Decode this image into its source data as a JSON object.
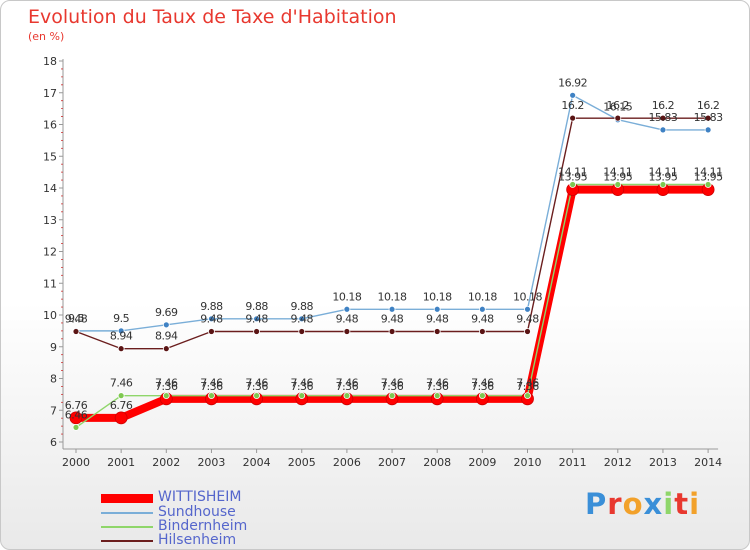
{
  "chart_data": {
    "type": "line",
    "title": "Evolution du Taux de Taxe d'Habitation",
    "subtitle": "(en %)",
    "categories": [
      "2000",
      "2001",
      "2002",
      "2003",
      "2004",
      "2005",
      "2006",
      "2007",
      "2008",
      "2009",
      "2010",
      "2011",
      "2012",
      "2013",
      "2014"
    ],
    "ylim": [
      6,
      18
    ],
    "yticks": [
      "6",
      "7",
      "8",
      "9",
      "10",
      "11",
      "12",
      "13",
      "14",
      "15",
      "16",
      "17",
      "18"
    ],
    "grid": false,
    "legend_position": "bottom-left",
    "series": [
      {
        "name": "WITTISHEIM",
        "color": "#ff0000",
        "values": [
          6.76,
          6.76,
          7.36,
          7.36,
          7.36,
          7.36,
          7.36,
          7.36,
          7.36,
          7.36,
          7.36,
          13.95,
          13.95,
          13.95,
          13.95
        ],
        "labels": [
          "6.76",
          "6.76",
          "7.36",
          "7.36",
          "7.36",
          "7.36",
          "7.36",
          "7.36",
          "7.36",
          "7.36",
          "7.36",
          "13.95",
          "13.95",
          "13.95",
          "13.95"
        ]
      },
      {
        "name": "Sundhouse",
        "color": "#7aaed8",
        "values": [
          9.5,
          9.5,
          9.69,
          9.88,
          9.88,
          9.88,
          10.18,
          10.18,
          10.18,
          10.18,
          10.18,
          16.92,
          16.15,
          15.83,
          15.83
        ],
        "labels": [
          "9.5",
          "9.5",
          "9.69",
          "9.88",
          "9.88",
          "9.88",
          "10.18",
          "10.18",
          "10.18",
          "10.18",
          "10.18",
          "16.92",
          "16.15",
          "15.83",
          "15.83"
        ]
      },
      {
        "name": "Bindernheim",
        "color": "#8fd66a",
        "values": [
          6.46,
          7.46,
          7.46,
          7.46,
          7.46,
          7.46,
          7.46,
          7.46,
          7.46,
          7.46,
          7.46,
          14.11,
          14.11,
          14.11,
          14.11
        ],
        "labels": [
          "6.46",
          "7.46",
          "7.46",
          "7.46",
          "7.46",
          "7.46",
          "7.46",
          "7.46",
          "7.46",
          "7.46",
          "7.46",
          "14.11",
          "14.11",
          "14.11",
          "14.11"
        ]
      },
      {
        "name": "Hilsenheim",
        "color": "#6b1e1e",
        "values": [
          9.48,
          8.94,
          8.94,
          9.48,
          9.48,
          9.48,
          9.48,
          9.48,
          9.48,
          9.48,
          9.48,
          16.2,
          16.2,
          16.2,
          16.2
        ],
        "labels": [
          "9.48",
          "8.94",
          "8.94",
          "9.48",
          "9.48",
          "9.48",
          "9.48",
          "9.48",
          "9.48",
          "9.48",
          "9.48",
          "16.2",
          "16.2",
          "16.2",
          "16.2"
        ]
      }
    ]
  },
  "legend": {
    "items": [
      {
        "label": "WITTISHEIM",
        "color": "#ff0000"
      },
      {
        "label": "Sundhouse",
        "color": "#7aaed8"
      },
      {
        "label": "Bindernheim",
        "color": "#8fd66a"
      },
      {
        "label": "Hilsenheim",
        "color": "#6b1e1e"
      }
    ]
  },
  "brand": {
    "letters": [
      "P",
      "r",
      "o",
      "x",
      "i",
      "t",
      "i"
    ],
    "colors": [
      "#3a8fd8",
      "#e8382f",
      "#f2a12a",
      "#3a8fd8",
      "#8fd66a",
      "#e8382f",
      "#f2a12a"
    ]
  }
}
